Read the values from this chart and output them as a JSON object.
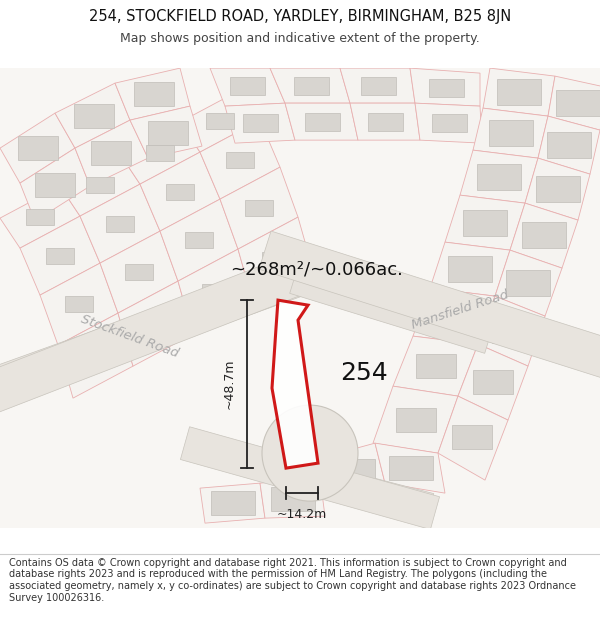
{
  "title_line1": "254, STOCKFIELD ROAD, YARDLEY, BIRMINGHAM, B25 8JN",
  "title_line2": "Map shows position and indicative extent of the property.",
  "footer_text": "Contains OS data © Crown copyright and database right 2021. This information is subject to Crown copyright and database rights 2023 and is reproduced with the permission of HM Land Registry. The polygons (including the associated geometry, namely x, y co-ordinates) are subject to Crown copyright and database rights 2023 Ordnance Survey 100026316.",
  "area_text": "~268m²/~0.066ac.",
  "dim_width_text": "~14.2m",
  "dim_height_text": "~48.7m",
  "road_label_stockfield": "Stockfield Road",
  "road_label_mansfield": "Mansfield Road",
  "label_254": "254",
  "title_fontsize": 10.5,
  "subtitle_fontsize": 9,
  "footer_fontsize": 7.0,
  "map_bg": "#faf9f7",
  "road_fill": "#e8e4de",
  "road_edge": "#c8c4bc",
  "block_fill": "#e0ddd8",
  "block_edge": "#c8c4bc",
  "plot_line_fill": "#f5f0ec",
  "plot_edge_color": "#e8a0a0",
  "plot_fill_color": "#ffffff",
  "highlight_color": "#cc0000",
  "dim_color": "#222222",
  "label_color": "#111111",
  "road_label_color": "#aaaaaa",
  "area_label_color": "#111111"
}
